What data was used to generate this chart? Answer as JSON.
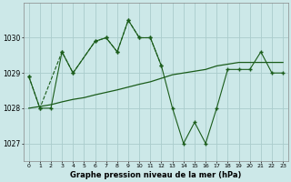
{
  "title": "Graphe pression niveau de la mer (hPa)",
  "bg_color": "#cce8e8",
  "grid_color": "#aacccc",
  "line_color": "#1a5c1a",
  "ylim": [
    1026.5,
    1031.0
  ],
  "yticks": [
    1027,
    1028,
    1029,
    1030
  ],
  "x_labels": [
    "0",
    "1",
    "2",
    "3",
    "4",
    "5",
    "6",
    "7",
    "8",
    "9",
    "10",
    "11",
    "12",
    "13",
    "14",
    "15",
    "16",
    "17",
    "18",
    "19",
    "20",
    "21",
    "22",
    "23"
  ],
  "dashed_x": [
    0,
    1,
    3,
    4,
    6,
    7,
    8,
    9,
    10,
    11,
    12
  ],
  "dashed_y": [
    1028.9,
    1028.0,
    1029.6,
    1029.0,
    1029.9,
    1030.0,
    1029.6,
    1030.5,
    1030.0,
    1030.0,
    1029.2
  ],
  "solid_x": [
    0,
    1,
    2,
    3,
    4,
    6,
    7,
    8,
    9,
    10,
    11,
    12,
    13,
    14,
    15,
    16,
    17,
    18,
    19,
    20,
    21,
    22,
    23
  ],
  "solid_y": [
    1028.9,
    1028.0,
    1028.0,
    1029.6,
    1029.0,
    1029.9,
    1030.0,
    1029.6,
    1030.5,
    1030.0,
    1030.0,
    1029.2,
    1028.0,
    1027.0,
    1027.6,
    1027.0,
    1028.0,
    1029.1,
    1029.1,
    1029.1,
    1029.6,
    1029.0,
    1029.0
  ],
  "trend_x": [
    0,
    1,
    2,
    3,
    4,
    5,
    6,
    7,
    8,
    9,
    10,
    11,
    12,
    13,
    14,
    15,
    16,
    17,
    18,
    19,
    20,
    21,
    22,
    23
  ],
  "trend_y": [
    1028.0,
    1028.05,
    1028.1,
    1028.18,
    1028.25,
    1028.3,
    1028.38,
    1028.45,
    1028.52,
    1028.6,
    1028.68,
    1028.75,
    1028.85,
    1028.95,
    1029.0,
    1029.05,
    1029.1,
    1029.2,
    1029.25,
    1029.3,
    1029.3,
    1029.3,
    1029.3,
    1029.3
  ]
}
